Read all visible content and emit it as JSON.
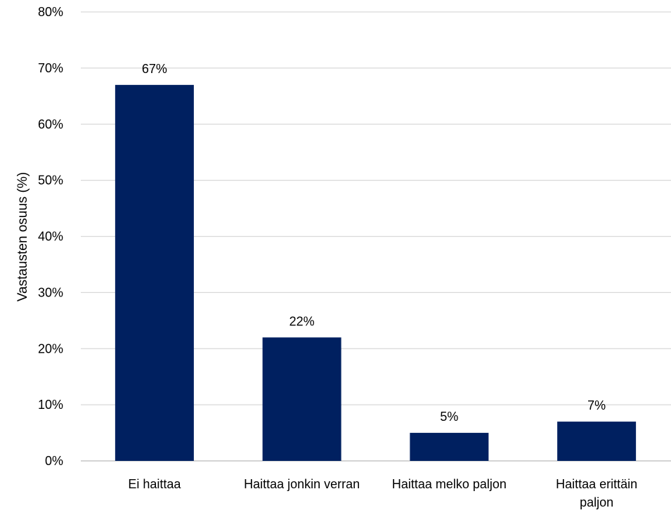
{
  "chart_data": {
    "type": "bar",
    "title": "",
    "xlabel": "",
    "ylabel": "Vastausten osuus (%)",
    "categories": [
      [
        "Ei haittaa"
      ],
      [
        "Haittaa jonkin verran"
      ],
      [
        "Haittaa melko paljon"
      ],
      [
        "Haittaa erittäin",
        "paljon"
      ]
    ],
    "values": [
      67,
      22,
      5,
      7
    ],
    "value_labels": [
      "67%",
      "22%",
      "5%",
      "7%"
    ],
    "ylim": [
      0,
      80
    ],
    "yticks": [
      0,
      10,
      20,
      30,
      40,
      50,
      60,
      70,
      80
    ],
    "ytick_labels": [
      "0%",
      "10%",
      "20%",
      "30%",
      "40%",
      "50%",
      "60%",
      "70%",
      "80%"
    ],
    "grid": true,
    "legend": "none",
    "bar_color": "#002060",
    "grid_color": "#d9d9d9"
  }
}
